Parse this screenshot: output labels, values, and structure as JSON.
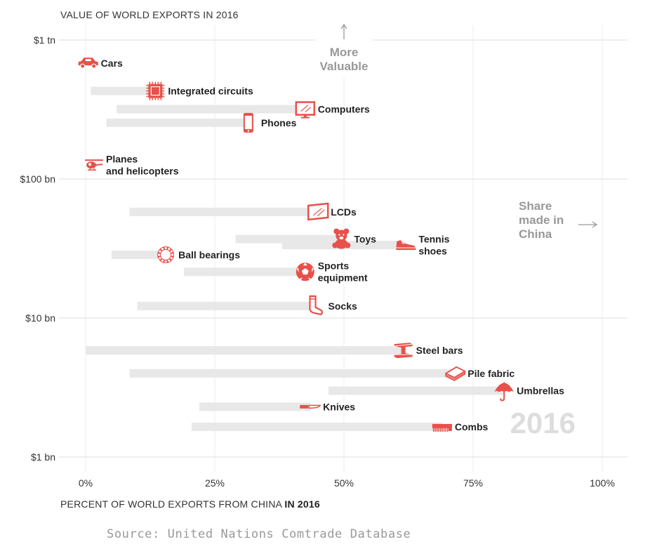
{
  "chart_data": {
    "type": "scatter",
    "ylabel": "VALUE OF WORLD EXPORTS IN 2016",
    "xlabel": "PERCENT OF WORLD EXPORTS FROM CHINA",
    "xlabel_bold": "IN 2016",
    "xlim": [
      0,
      100
    ],
    "x_ticks": [
      {
        "value": 0,
        "label": "0%"
      },
      {
        "value": 25,
        "label": "25%"
      },
      {
        "value": 50,
        "label": "50%"
      },
      {
        "value": 75,
        "label": "75%"
      },
      {
        "value": 100,
        "label": "100%"
      }
    ],
    "y_scale": "log",
    "ylim": [
      1,
      1000
    ],
    "y_ticks": [
      {
        "value": 1000,
        "label": "$1 tn"
      },
      {
        "value": 100,
        "label": "$100 bn"
      },
      {
        "value": 10,
        "label": "$10 bn"
      },
      {
        "value": 1,
        "label": "$1 bn"
      }
    ],
    "grid": true,
    "year_label": "2016",
    "annotation_up": [
      "More",
      "Valuable"
    ],
    "annotation_right": [
      "Share",
      "made in",
      "China"
    ],
    "color": "#e8504a",
    "trail_color": "#e8e8e8",
    "points": [
      {
        "name": "Cars",
        "lines": [
          "Cars"
        ],
        "x": 0.5,
        "y": 680,
        "trail_start": null,
        "icon": "car-icon"
      },
      {
        "name": "Integrated circuits",
        "lines": [
          "Integrated circuits"
        ],
        "x": 13.5,
        "y": 430,
        "trail_start": 1,
        "icon": "chip-icon"
      },
      {
        "name": "Computers",
        "lines": [
          "Computers"
        ],
        "x": 42.5,
        "y": 318,
        "trail_start": 6,
        "icon": "monitor-icon"
      },
      {
        "name": "Phones",
        "lines": [
          "Phones"
        ],
        "x": 31.5,
        "y": 254,
        "trail_start": 4,
        "icon": "phone-icon"
      },
      {
        "name": "Planes and helicopters",
        "lines": [
          "Planes",
          "and helicopters"
        ],
        "x": 1.5,
        "y": 126,
        "trail_start": null,
        "icon": "helicopter-icon"
      },
      {
        "name": "LCDs",
        "lines": [
          "LCDs"
        ],
        "x": 45,
        "y": 58,
        "trail_start": 8.5,
        "icon": "lcd-icon"
      },
      {
        "name": "Toys",
        "lines": [
          "Toys"
        ],
        "x": 49.5,
        "y": 37,
        "trail_start": 29,
        "icon": "teddy-bear-icon"
      },
      {
        "name": "Tennis shoes",
        "lines": [
          "Tennis",
          "shoes"
        ],
        "x": 62,
        "y": 33.5,
        "trail_start": 38,
        "icon": "sneaker-icon"
      },
      {
        "name": "Ball bearings",
        "lines": [
          "Ball bearings"
        ],
        "x": 15.5,
        "y": 28.5,
        "trail_start": 5,
        "icon": "bearing-icon"
      },
      {
        "name": "Sports equipment",
        "lines": [
          "Sports",
          "equipment"
        ],
        "x": 42.5,
        "y": 21.5,
        "trail_start": 19,
        "icon": "soccer-ball-icon"
      },
      {
        "name": "Socks",
        "lines": [
          "Socks"
        ],
        "x": 44.5,
        "y": 12.2,
        "trail_start": 10,
        "icon": "sock-icon"
      },
      {
        "name": "Steel bars",
        "lines": [
          "Steel bars"
        ],
        "x": 61.5,
        "y": 5.85,
        "trail_start": 0,
        "icon": "steel-beam-icon"
      },
      {
        "name": "Pile fabric",
        "lines": [
          "Pile fabric"
        ],
        "x": 71.5,
        "y": 4.0,
        "trail_start": 8.5,
        "icon": "fabric-icon"
      },
      {
        "name": "Umbrellas",
        "lines": [
          "Umbrellas"
        ],
        "x": 81,
        "y": 3.0,
        "trail_start": 47,
        "icon": "umbrella-icon"
      },
      {
        "name": "Knives",
        "lines": [
          "Knives"
        ],
        "x": 43.5,
        "y": 2.3,
        "trail_start": 22,
        "icon": "knife-icon"
      },
      {
        "name": "Combs",
        "lines": [
          "Combs"
        ],
        "x": 69,
        "y": 1.65,
        "trail_start": 20.5,
        "icon": "comb-icon"
      }
    ]
  },
  "source": "Source: United Nations Comtrade Database"
}
